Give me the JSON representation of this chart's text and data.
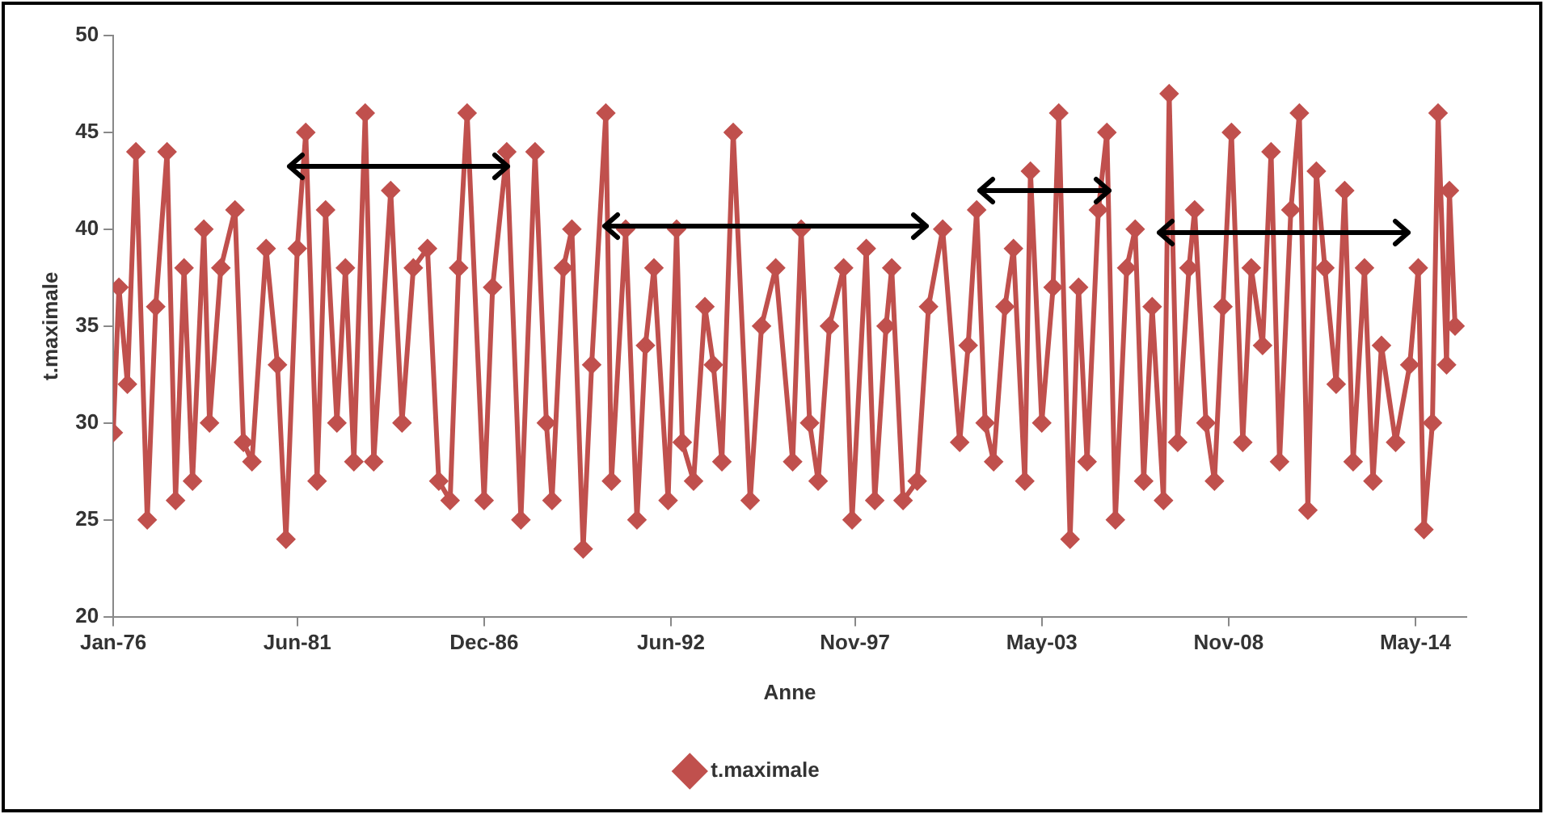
{
  "chart_data": {
    "type": "line",
    "xlabel": "Anne",
    "ylabel": "t.maximale",
    "x": [
      "1976-01",
      "1976-03",
      "1976-06",
      "1976-09",
      "1977-01",
      "1977-04",
      "1977-08",
      "1977-11",
      "1978-02",
      "1978-05",
      "1978-09",
      "1978-11",
      "1979-03",
      "1979-08",
      "1979-11",
      "1980-02",
      "1980-07",
      "1980-11",
      "1981-02",
      "1981-06",
      "1981-09",
      "1982-01",
      "1982-04",
      "1982-08",
      "1982-11",
      "1983-02",
      "1983-06",
      "1983-09",
      "1984-03",
      "1984-07",
      "1984-11",
      "1985-04",
      "1985-08",
      "1985-12",
      "1986-03",
      "1986-06",
      "1986-12",
      "1987-03",
      "1987-08",
      "1988-01",
      "1988-06",
      "1988-10",
      "1988-12",
      "1989-04",
      "1989-07",
      "1989-11",
      "1990-02",
      "1990-07",
      "1990-09",
      "1991-02",
      "1991-06",
      "1991-09",
      "1991-12",
      "1992-05",
      "1992-08",
      "1992-10",
      "1993-02",
      "1993-06",
      "1993-09",
      "1993-12",
      "1994-04",
      "1994-10",
      "1995-02",
      "1995-07",
      "1996-01",
      "1996-04",
      "1996-07",
      "1996-10",
      "1997-02",
      "1997-07",
      "1997-10",
      "1998-03",
      "1998-06",
      "1998-10",
      "1998-12",
      "1999-04",
      "1999-09",
      "2000-01",
      "2000-06",
      "2000-12",
      "2001-03",
      "2001-06",
      "2001-09",
      "2001-12",
      "2002-04",
      "2002-07",
      "2002-11",
      "2003-01",
      "2003-05",
      "2003-09",
      "2003-11",
      "2004-03",
      "2004-06",
      "2004-09",
      "2005-01",
      "2005-04",
      "2005-07",
      "2005-11",
      "2006-02",
      "2006-05",
      "2006-08",
      "2006-12",
      "2007-02",
      "2007-05",
      "2007-09",
      "2007-11",
      "2008-03",
      "2008-06",
      "2008-09",
      "2008-12",
      "2009-04",
      "2009-07",
      "2009-11",
      "2010-02",
      "2010-05",
      "2010-09",
      "2010-12",
      "2011-03",
      "2011-06",
      "2011-09",
      "2012-01",
      "2012-04",
      "2012-07",
      "2012-11",
      "2013-02",
      "2013-05",
      "2013-10",
      "2014-03",
      "2014-06",
      "2014-08",
      "2014-11",
      "2015-01",
      "2015-04",
      "2015-05",
      "2015-07"
    ],
    "series": [
      {
        "name": "t.maximale",
        "color": "#c0504d",
        "values": [
          29.5,
          37,
          32,
          44,
          25,
          36,
          44,
          26,
          38,
          27,
          40,
          30,
          38,
          41,
          29,
          28,
          39,
          33,
          24,
          39,
          45,
          27,
          41,
          30,
          38,
          28,
          46,
          28,
          42,
          30,
          38,
          39,
          27,
          26,
          38,
          46,
          26,
          37,
          44,
          25,
          44,
          30,
          26,
          38,
          40,
          23.5,
          33,
          46,
          27,
          40,
          25,
          34,
          38,
          26,
          40,
          29,
          27,
          36,
          33,
          28,
          45,
          26,
          35,
          38,
          28,
          40,
          30,
          27,
          35,
          38,
          25,
          39,
          26,
          35,
          38,
          26,
          27,
          36,
          40,
          29,
          34,
          41,
          30,
          28,
          36,
          39,
          27,
          43,
          30,
          37,
          46,
          24,
          37,
          28,
          41,
          45,
          25,
          38,
          40,
          27,
          36,
          26,
          47,
          29,
          38,
          41,
          30,
          27,
          36,
          45,
          29,
          38,
          34,
          44,
          28,
          41,
          46,
          25.5,
          43,
          38,
          32,
          42,
          28,
          38,
          27,
          34,
          29,
          33,
          38,
          24.5,
          30,
          46,
          33,
          42,
          35
        ]
      }
    ],
    "xlim": [
      "1976-01",
      "2015-11"
    ],
    "xticks": [
      {
        "value": "1976-01",
        "label": "Jan-76"
      },
      {
        "value": "1981-06",
        "label": "Jun-81"
      },
      {
        "value": "1986-12",
        "label": "Dec-86"
      },
      {
        "value": "1992-06",
        "label": "Jun-92"
      },
      {
        "value": "1997-11",
        "label": "Nov-97"
      },
      {
        "value": "2003-05",
        "label": "May-03"
      },
      {
        "value": "2008-11",
        "label": "Nov-08"
      },
      {
        "value": "2014-05",
        "label": "May-14"
      }
    ],
    "ylim": [
      20,
      50
    ],
    "yticks": [
      20,
      25,
      30,
      35,
      40,
      45,
      50
    ],
    "grid": false,
    "legend": "bottom",
    "marker": "diamond",
    "line_style": "solid"
  }
}
